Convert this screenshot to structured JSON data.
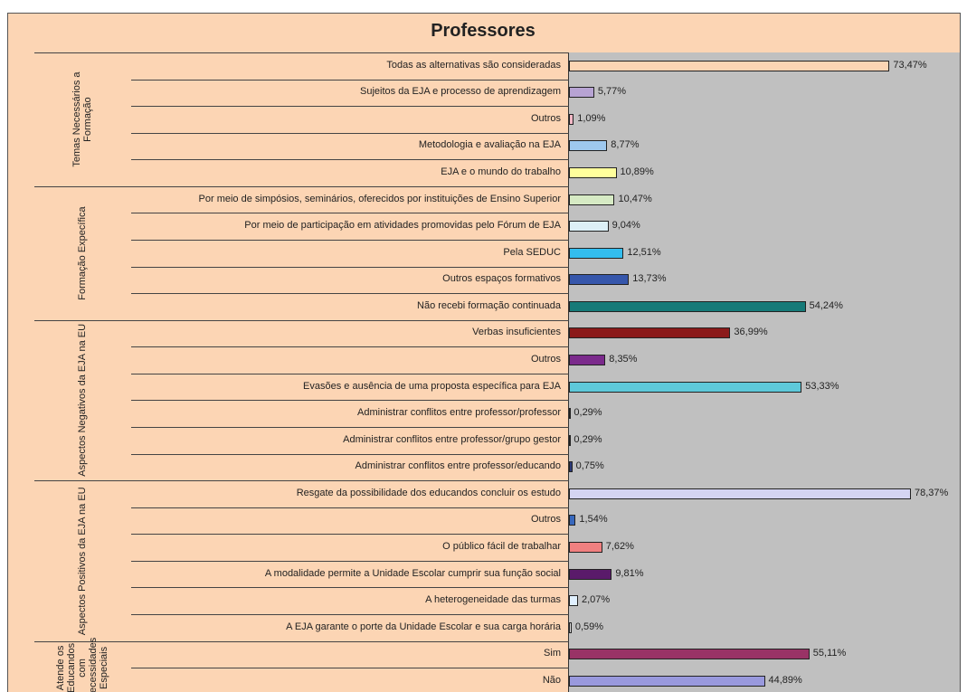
{
  "chart_data": {
    "type": "grouped-hbar",
    "title": "Professores",
    "groups": [
      {
        "name": "Temas Necessários a Formação",
        "categories": [
          "Todas as alternativas são consideradas",
          "Sujeitos da EJA e processo de aprendizagem",
          "Outros",
          "Metodologia e avaliação na EJA",
          "EJA e o mundo do trabalho"
        ],
        "values": [
          73.47,
          5.77,
          1.09,
          8.77,
          10.89
        ],
        "value_labels": [
          "73,47%",
          "5,77%",
          "1,09%",
          "8,77%",
          "10,89%"
        ],
        "colors": [
          "#fcd5b4",
          "#b7a3d3",
          "#f2b8c6",
          "#9ec8ee",
          "#ffff9c"
        ]
      },
      {
        "name": "Formação Expecífica",
        "categories": [
          "Por meio de simpósios, seminários, oferecidos por instituições de Ensino Superior",
          "Por meio de participação em atividades promovidas pelo Fórum de EJA",
          "Pela SEDUC",
          "Outros espaços formativos",
          "Não recebi formação continuada"
        ],
        "values": [
          10.47,
          9.04,
          12.51,
          13.73,
          54.24
        ],
        "value_labels": [
          "10,47%",
          "9,04%",
          "12,51%",
          "13,73%",
          "54,24%"
        ],
        "colors": [
          "#d6eac4",
          "#ddf0f6",
          "#33bdee",
          "#3556ab",
          "#167a78"
        ]
      },
      {
        "name": "Aspectos Negativos da EJA na EU",
        "categories": [
          "Verbas insuficientes",
          "Outros",
          "Evasões e ausência de uma proposta específica para EJA",
          "Administrar conflitos entre professor/professor",
          "Administrar conflitos entre professor/grupo gestor",
          "Administrar conflitos entre professor/educando"
        ],
        "values": [
          36.99,
          8.35,
          53.33,
          0.29,
          0.29,
          0.75
        ],
        "value_labels": [
          "36,99%",
          "8,35%",
          "53,33%",
          "0,29%",
          "0,29%",
          "0,75%"
        ],
        "colors": [
          "#8b1a1a",
          "#7b2a8c",
          "#5ec9da",
          "#c0c0ff",
          "#9999cc",
          "#2b3a7a"
        ]
      },
      {
        "name": "Aspectos Positivos da EJA na EU",
        "categories": [
          "Resgate da possibilidade dos educandos concluir os estudo",
          "Outros",
          "O público fácil de trabalhar",
          "A modalidade permite a Unidade Escolar cumprir sua função social",
          "A heterogeneidade das turmas",
          "A EJA garante o porte da Unidade Escolar e sua carga horária"
        ],
        "values": [
          78.37,
          1.54,
          7.62,
          9.81,
          2.07,
          0.59
        ],
        "value_labels": [
          "78,37%",
          "1,54%",
          "7,62%",
          "9,81%",
          "2,07%",
          "0,59%"
        ],
        "colors": [
          "#d4d4f2",
          "#3868bd",
          "#f08080",
          "#5a1a6a",
          "#e0f0ff",
          "#dddddd"
        ]
      },
      {
        "name": "Atende os Educandos com necessidades Especiais",
        "categories": [
          "Sim",
          "Não"
        ],
        "values": [
          55.11,
          44.89
        ],
        "value_labels": [
          "55,11%",
          "44,89%"
        ],
        "colors": [
          "#993366",
          "#9999dd"
        ]
      }
    ]
  }
}
